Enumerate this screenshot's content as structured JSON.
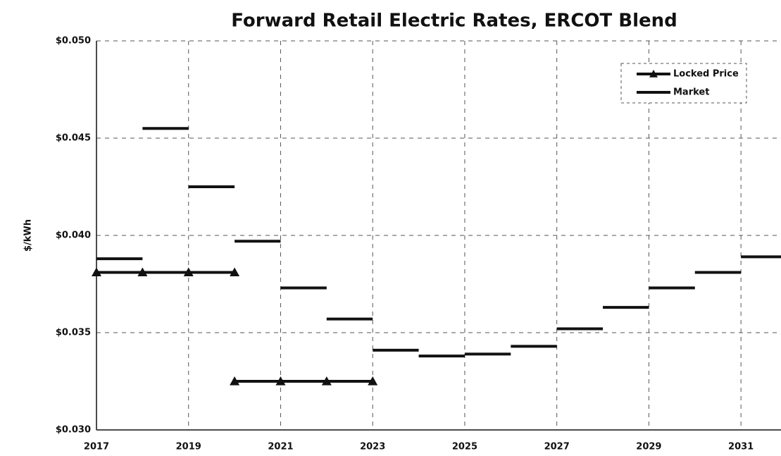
{
  "chart_data": {
    "type": "line",
    "title": "Forward Retail Electric Rates, ERCOT Blend",
    "y_label": "$/kWh",
    "xlim": [
      2017,
      2031.87
    ],
    "xticks": [
      2017,
      2019,
      2021,
      2023,
      2025,
      2027,
      2029,
      2031
    ],
    "ylim": [
      0.03,
      0.05
    ],
    "yticks": [
      {
        "value": 0.03,
        "label": "$0.030"
      },
      {
        "value": 0.035,
        "label": "$0.035"
      },
      {
        "value": 0.04,
        "label": "$0.040"
      },
      {
        "value": 0.045,
        "label": "$0.045"
      },
      {
        "value": 0.05,
        "label": "$0.050"
      }
    ],
    "grid": true,
    "legend": "upper right",
    "series": [
      {
        "name": "Locked Price",
        "color": "#111111",
        "marker": "triangle",
        "style": "line",
        "x": [
          2017,
          2018,
          2019,
          2020,
          null,
          2020,
          2021,
          2022,
          2023
        ],
        "values": [
          0.0381,
          0.0381,
          0.0381,
          0.0381,
          null,
          0.0325,
          0.0325,
          0.0325,
          0.0325
        ]
      },
      {
        "name": "Market",
        "color": "#111111",
        "style": "step",
        "x": [
          2017,
          2018,
          2019,
          2020,
          2021,
          2022,
          2023,
          2024,
          2025,
          2026,
          2027,
          2028,
          2029,
          2030,
          2031
        ],
        "values": [
          0.0388,
          0.0455,
          0.0425,
          0.0397,
          0.0373,
          0.0357,
          0.0341,
          0.0338,
          0.0339,
          0.0343,
          0.0352,
          0.0363,
          0.0373,
          0.0381,
          0.0389
        ]
      }
    ]
  }
}
